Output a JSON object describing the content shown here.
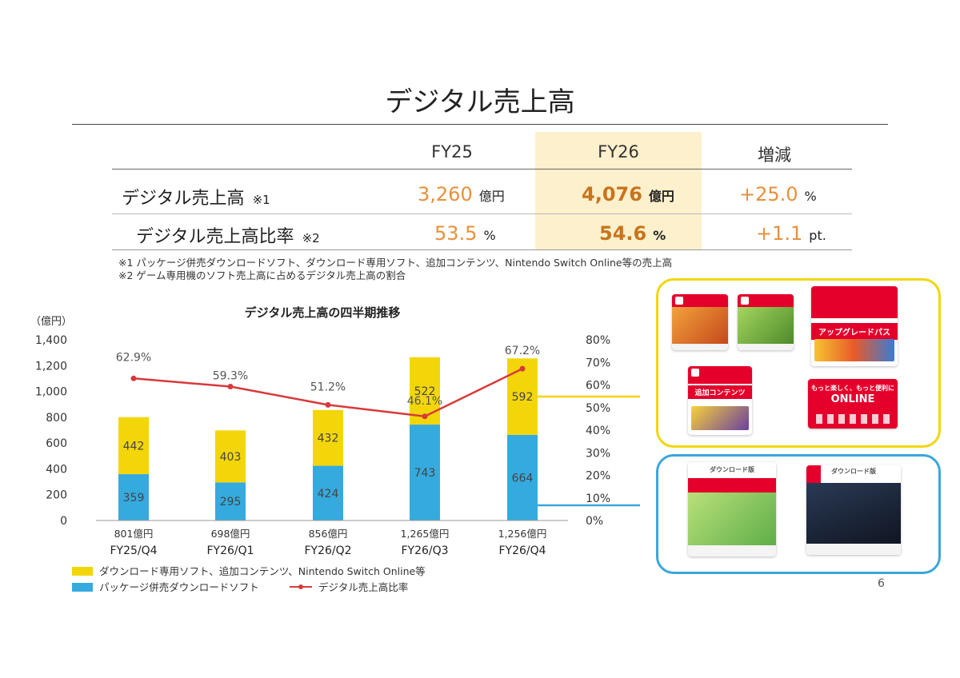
{
  "slide": {
    "title": "デジタル売上高",
    "page_number": "6"
  },
  "summary_table": {
    "columns": [
      "FY25",
      "FY26",
      "増減"
    ],
    "rows": [
      {
        "label": "デジタル売上高",
        "note": "※1",
        "fy25": "3,260",
        "fy25_unit": "億円",
        "fy26": "4,076",
        "fy26_unit": "億円",
        "change": "+25.0",
        "change_unit": "%"
      },
      {
        "label": "デジタル売上高比率",
        "note": "※2",
        "fy25": "53.5",
        "fy25_unit": "%",
        "fy26": "54.6",
        "fy26_unit": "%",
        "change": "+1.1",
        "change_unit": "pt."
      }
    ],
    "footnotes": [
      "※1 パッケージ併売ダウンロードソフト、ダウンロード専用ソフト、追加コンテンツ、Nintendo Switch Online等の売上高",
      "※2 ゲーム専用機のソフト売上高に占めるデジタル売上高の割合"
    ]
  },
  "chart_data": {
    "type": "bar",
    "stacked": true,
    "title": "デジタル売上高の四半期推移",
    "ylabel": "（億円）",
    "ylim": [
      0,
      1400
    ],
    "yticks": [
      "0",
      "200",
      "400",
      "600",
      "800",
      "1,000",
      "1,200",
      "1,400"
    ],
    "y2lim": [
      0,
      80
    ],
    "y2ticks": [
      "0%",
      "10%",
      "20%",
      "30%",
      "40%",
      "50%",
      "60%",
      "70%",
      "80%"
    ],
    "categories": [
      "FY25/Q4",
      "FY26/Q1",
      "FY26/Q2",
      "FY26/Q3",
      "FY26/Q4"
    ],
    "totals": [
      "801億円",
      "698億円",
      "856億円",
      "1,265億円",
      "1,256億円"
    ],
    "series": [
      {
        "name": "パッケージ併売ダウンロードソフト",
        "color": "#35aadf",
        "values": [
          359,
          295,
          424,
          743,
          664
        ]
      },
      {
        "name": "ダウンロード専用ソフト、追加コンテンツ、Nintendo Switch Online等",
        "color": "#f2d60a",
        "values": [
          442,
          403,
          432,
          522,
          592
        ]
      }
    ],
    "line": {
      "name": "デジタル売上高比率",
      "color": "#d8393a",
      "axis": "right",
      "values": [
        62.9,
        59.3,
        51.2,
        46.1,
        67.2
      ],
      "labels": [
        "62.9%",
        "59.3%",
        "51.2%",
        "46.1%",
        "67.2%"
      ]
    },
    "legend_position": "bottom-left",
    "grid": false
  },
  "products": {
    "upgrade_pass_title": "アップグレードパス",
    "add_content_title": "追加コンテンツ",
    "online_label": "ONLINE",
    "online_tagline": "もっと楽しく、もっと便利に",
    "download_label": "ダウンロード版"
  },
  "colors": {
    "accent_orange": "#e8903a",
    "accent_orange_dark": "#c8741e",
    "fy26_highlight": "#fdf0cc",
    "box_yellow": "#f2d60a",
    "box_blue": "#3aa6dc",
    "nintendo_red": "#e4002b"
  }
}
